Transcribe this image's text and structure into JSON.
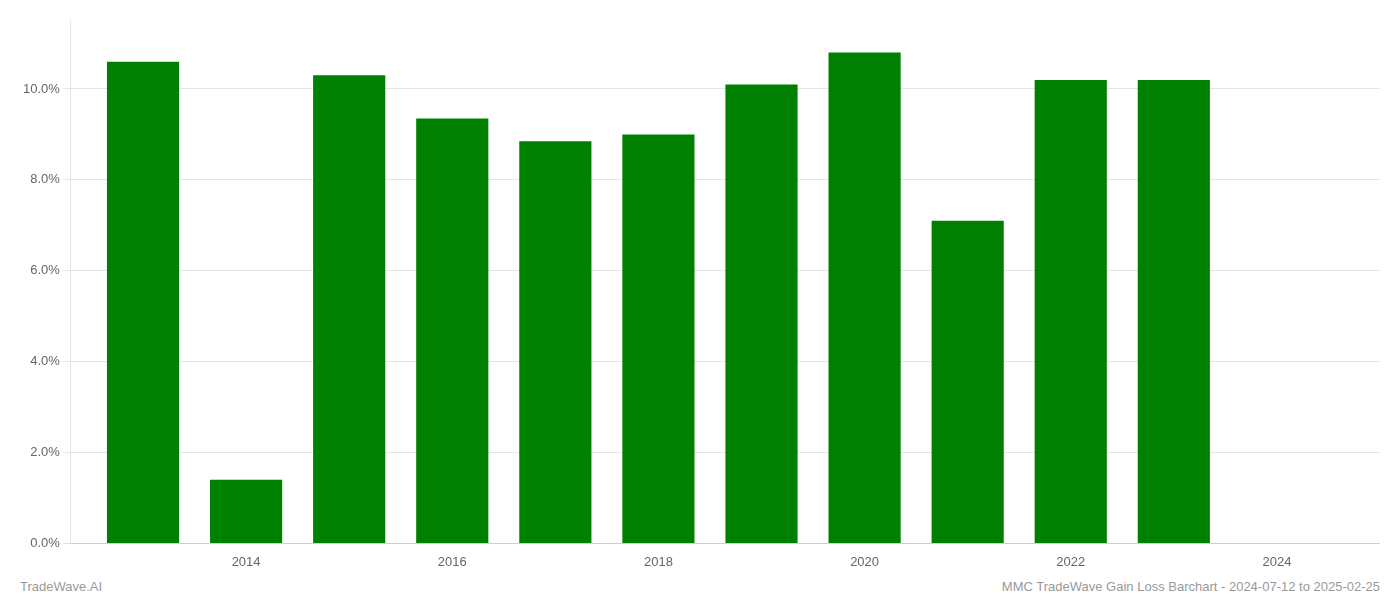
{
  "chart_data": {
    "type": "bar",
    "x": [
      2013,
      2014,
      2015,
      2016,
      2017,
      2018,
      2019,
      2020,
      2021,
      2022,
      2023
    ],
    "values": [
      0.106,
      0.014,
      0.103,
      0.0935,
      0.0885,
      0.09,
      0.101,
      0.108,
      0.071,
      0.102,
      0.102
    ],
    "color": "#008000",
    "xlim": [
      2012.3,
      2025
    ],
    "xticks": [
      2014,
      2016,
      2018,
      2020,
      2022,
      2024
    ],
    "ylim": [
      0,
      0.115
    ],
    "yticks": [
      {
        "value": 0.0,
        "label": "0.0%"
      },
      {
        "value": 0.02,
        "label": "2.0%"
      },
      {
        "value": 0.04,
        "label": "4.0%"
      },
      {
        "value": 0.06,
        "label": "6.0%"
      },
      {
        "value": 0.08,
        "label": "8.0%"
      },
      {
        "value": 0.1,
        "label": "10.0%"
      }
    ],
    "grid": true,
    "annotations": [
      "TradeWave.AI",
      "MMC TradeWave Gain Loss Barchart - 2024-07-12 to 2025-02-25"
    ]
  }
}
